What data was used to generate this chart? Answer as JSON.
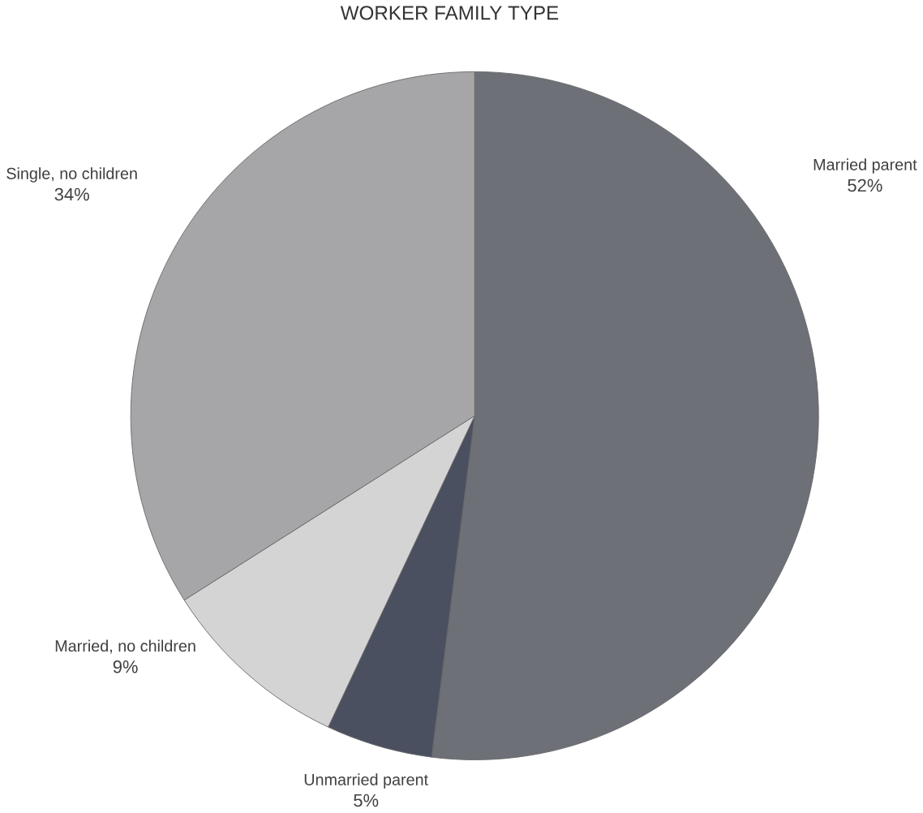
{
  "chart_data": {
    "type": "pie",
    "title": "WORKER FAMILY TYPE",
    "categories": [
      "Married parent",
      "Unmarried parent",
      "Married, no children",
      "Single, no children"
    ],
    "values": [
      52,
      5,
      9,
      34
    ],
    "colors": [
      "#6e7078",
      "#4b5060",
      "#d4d4d4",
      "#a6a6a8"
    ],
    "value_labels": [
      "52%",
      "5%",
      "9%",
      "34%"
    ]
  }
}
